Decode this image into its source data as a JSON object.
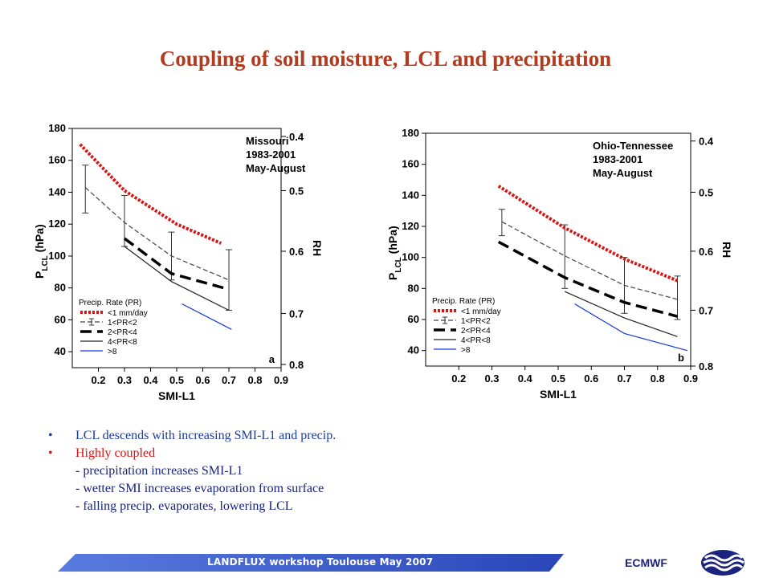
{
  "title": "Coupling of soil moisture, LCL and precipitation",
  "bullets": [
    {
      "text": "LCL descends with increasing SMI-L1 and precip.",
      "color": "#1a3c9e"
    },
    {
      "text": "Highly coupled",
      "color": "#e01010"
    }
  ],
  "sub_points": [
    "- precipitation increases SMI-L1",
    "- wetter SMI increases evaporation from surface",
    "- falling precip. evaporates, lowering LCL"
  ],
  "footer": {
    "text": "LANDFLUX workshop Toulouse May 2007",
    "brand": "ECMWF",
    "bar_color": "#3a59c8"
  },
  "legend_title": "Precip. Rate (PR)",
  "chart_data": [
    {
      "type": "line",
      "panel_label": "a",
      "region": "Missouri",
      "period": "1983-2001",
      "season": "May-August",
      "xlabel": "SMI-L1",
      "ylabel_main": "P",
      "ylabel_sub": "LCL",
      "ylabel_unit": "(hPa)",
      "y2label": "RH",
      "xlim": [
        0.1,
        0.9
      ],
      "ylim": [
        30,
        180
      ],
      "xticks": [
        0.2,
        0.3,
        0.4,
        0.5,
        0.6,
        0.7,
        0.8,
        0.9
      ],
      "yticks": [
        40,
        60,
        80,
        100,
        120,
        140,
        160,
        180
      ],
      "y2ticks": [
        {
          "label": "0.4",
          "y": 175
        },
        {
          "label": "0.5",
          "y": 141
        },
        {
          "label": "0.6",
          "y": 103
        },
        {
          "label": "0.7",
          "y": 64
        },
        {
          "label": "0.8",
          "y": 32
        }
      ],
      "series": [
        {
          "name": "<1 mm/day",
          "color": "#e01010",
          "style": "dotted",
          "x": [
            0.13,
            0.3,
            0.5,
            0.67
          ],
          "y": [
            170,
            141,
            120,
            108
          ]
        },
        {
          "name": "1<PR<2",
          "color": "#444444",
          "style": "dashed",
          "x": [
            0.15,
            0.3,
            0.48,
            0.7
          ],
          "y": [
            143,
            121,
            100,
            85
          ]
        },
        {
          "name": "2<PR<4",
          "color": "#000000",
          "style": "longdash",
          "x": [
            0.3,
            0.48,
            0.68
          ],
          "y": [
            111,
            89,
            80
          ]
        },
        {
          "name": "4<PR<8",
          "color": "#222222",
          "style": "solid",
          "x": [
            0.3,
            0.48,
            0.7
          ],
          "y": [
            106,
            84,
            66
          ]
        },
        {
          "name": ">8",
          "color": "#1638d6",
          "style": "solid",
          "x": [
            0.52,
            0.71
          ],
          "y": [
            70,
            54
          ]
        }
      ],
      "error_bars": [
        {
          "x": 0.15,
          "low": 127,
          "high": 157
        },
        {
          "x": 0.3,
          "low": 106,
          "high": 138
        },
        {
          "x": 0.48,
          "low": 85,
          "high": 115
        },
        {
          "x": 0.7,
          "low": 66,
          "high": 104
        }
      ]
    },
    {
      "type": "line",
      "panel_label": "b",
      "region": "Ohio-Tennessee",
      "period": "1983-2001",
      "season": "May-August",
      "xlabel": "SMI-L1",
      "ylabel_main": "P",
      "ylabel_sub": "LCL",
      "ylabel_unit": "(hPa)",
      "y2label": "RH",
      "xlim": [
        0.1,
        0.9
      ],
      "ylim": [
        30,
        180
      ],
      "xticks": [
        0.2,
        0.3,
        0.4,
        0.5,
        0.6,
        0.7,
        0.8,
        0.9
      ],
      "yticks": [
        40,
        60,
        80,
        100,
        120,
        140,
        160,
        180
      ],
      "y2ticks": [
        {
          "label": "0.4",
          "y": 175
        },
        {
          "label": "0.5",
          "y": 142
        },
        {
          "label": "0.6",
          "y": 104
        },
        {
          "label": "0.7",
          "y": 66
        },
        {
          "label": "0.8",
          "y": 30
        }
      ],
      "series": [
        {
          "name": "<1 mm/day",
          "color": "#e01010",
          "style": "dotted",
          "x": [
            0.32,
            0.52,
            0.7,
            0.86
          ],
          "y": [
            146,
            119,
            99,
            85
          ]
        },
        {
          "name": "1<PR<2",
          "color": "#444444",
          "style": "dashed",
          "x": [
            0.33,
            0.52,
            0.7,
            0.86
          ],
          "y": [
            123,
            101,
            82,
            73
          ]
        },
        {
          "name": "2<PR<4",
          "color": "#000000",
          "style": "longdash",
          "x": [
            0.32,
            0.52,
            0.7,
            0.86
          ],
          "y": [
            110,
            87,
            71,
            62
          ]
        },
        {
          "name": "4<PR<8",
          "color": "#222222",
          "style": "solid",
          "x": [
            0.52,
            0.7,
            0.86
          ],
          "y": [
            78,
            61,
            49
          ]
        },
        {
          "name": ">8",
          "color": "#1638d6",
          "style": "solid",
          "x": [
            0.55,
            0.7,
            0.89
          ],
          "y": [
            70,
            51,
            40
          ]
        }
      ],
      "error_bars": [
        {
          "x": 0.33,
          "low": 114,
          "high": 131
        },
        {
          "x": 0.52,
          "low": 80,
          "high": 121
        },
        {
          "x": 0.7,
          "low": 64,
          "high": 100
        },
        {
          "x": 0.86,
          "low": 60,
          "high": 88
        }
      ]
    }
  ]
}
